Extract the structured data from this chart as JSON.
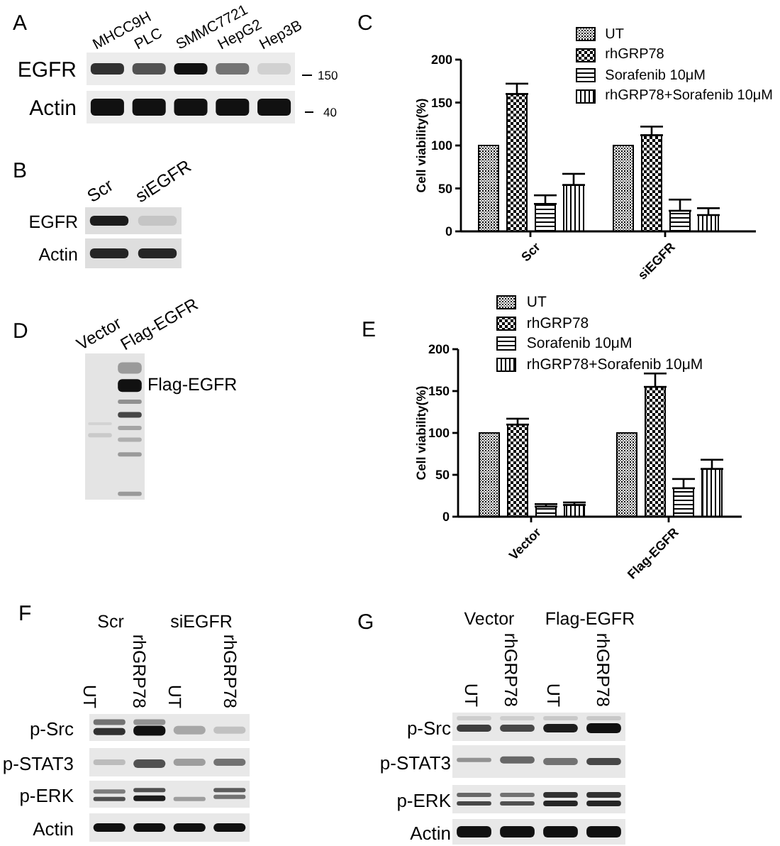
{
  "chart_data": [
    {
      "type": "other",
      "title": "A",
      "categories": [
        "MHCC9H",
        "PLC",
        "SMMC7721",
        "HepG2",
        "Hep3B"
      ],
      "y_categories": [
        "EGFR",
        "Actin"
      ],
      "y2_categories": [
        "150",
        "40"
      ]
    },
    {
      "type": "other",
      "title": "B",
      "categories": [
        "Scr",
        "siEGFR"
      ],
      "y_categories": [
        "EGFR",
        "Actin"
      ]
    },
    {
      "type": "bar",
      "title": "C",
      "categories": [
        "Scr",
        "siEGFR"
      ],
      "ylabel": "Cell viability(%)",
      "ylim": [
        0,
        200
      ],
      "yticks": [
        0,
        50,
        100,
        150,
        200
      ],
      "legend": "top right",
      "series": [
        {
          "name": "UT",
          "color": "#000000",
          "values": [
            100,
            100
          ]
        },
        {
          "name": "rhGRP78",
          "color": "#000000",
          "values": [
            160,
            112
          ],
          "errors": [
            [
              160,
              172
            ],
            [
              112,
              122
            ]
          ]
        },
        {
          "name": "Sorafenib 10μM",
          "color": "#000000",
          "values": [
            32,
            24
          ],
          "errors": [
            [
              32,
              42
            ],
            [
              24,
              37
            ]
          ]
        },
        {
          "name": "rhGRP78+Sorafenib 10μM",
          "color": "#000000",
          "values": [
            54,
            19
          ],
          "errors": [
            [
              54,
              67
            ],
            [
              19,
              27
            ]
          ]
        }
      ]
    },
    {
      "type": "other",
      "title": "D",
      "categories": [
        "Vector",
        "Flag-EGFR"
      ],
      "y2_categories": [
        "Flag-EGFR"
      ]
    },
    {
      "type": "bar",
      "title": "E",
      "categories": [
        "Vector",
        "Flag-EGFR"
      ],
      "ylabel": "Cell viability(%)",
      "ylim": [
        0,
        200
      ],
      "yticks": [
        0,
        50,
        100,
        150,
        200
      ],
      "legend": "top",
      "series": [
        {
          "name": "UT",
          "color": "#000000",
          "values": [
            100,
            100
          ]
        },
        {
          "name": "rhGRP78",
          "color": "#000000",
          "values": [
            110,
            155
          ],
          "errors": [
            [
              110,
              117
            ],
            [
              155,
              171
            ]
          ]
        },
        {
          "name": "Sorafenib 10μM",
          "color": "#000000",
          "values": [
            12,
            34
          ],
          "errors": [
            [
              12,
              15
            ],
            [
              34,
              45
            ]
          ]
        },
        {
          "name": "rhGRP78+Sorafenib 10μM",
          "color": "#000000",
          "values": [
            14,
            57
          ],
          "errors": [
            [
              14,
              17
            ],
            [
              57,
              68
            ]
          ]
        }
      ]
    },
    {
      "type": "other",
      "title": "F",
      "annotations": [
        "Scr",
        "siEGFR"
      ],
      "categories": [
        "UT",
        "rhGRP78",
        "UT",
        "rhGRP78"
      ],
      "y_categories": [
        "p-Src",
        "p-STAT3",
        "p-ERK",
        "Actin"
      ]
    },
    {
      "type": "other",
      "title": "G",
      "annotations": [
        "Vector",
        "Flag-EGFR"
      ],
      "categories": [
        "UT",
        "rhGRP78",
        "UT",
        "rhGRP78"
      ],
      "y_categories": [
        "p-Src",
        "p-STAT3",
        "p-ERK",
        "Actin"
      ]
    }
  ]
}
